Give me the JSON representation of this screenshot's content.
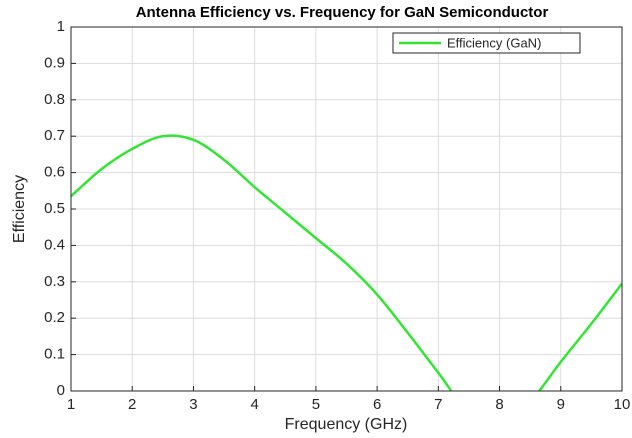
{
  "chart_data": {
    "type": "line",
    "title": "Antenna Efficiency vs. Frequency for GaN Semiconductor",
    "x_label": "Frequency (GHz)",
    "y_label": "Efficiency",
    "x": [
      1,
      1.5,
      2,
      2.5,
      3,
      3.5,
      4,
      4.5,
      5,
      5.5,
      6,
      6.5,
      7,
      7.5,
      8,
      8.5,
      9,
      9.5,
      10
    ],
    "series": [
      {
        "name": "Efficiency (GaN)",
        "color": "#33e533",
        "values": [
          0.535,
          0.61,
          0.665,
          0.7,
          0.69,
          0.635,
          0.56,
          0.49,
          0.42,
          0.35,
          0.265,
          0.16,
          0.05,
          -0.06,
          -0.1,
          -0.03,
          0.08,
          0.185,
          0.295
        ]
      }
    ],
    "xlim": [
      1,
      10
    ],
    "xticks": [
      1,
      2,
      3,
      4,
      5,
      6,
      7,
      8,
      9,
      10
    ],
    "ylim": [
      0,
      1
    ],
    "yticks": [
      0,
      0.1,
      0.2,
      0.3,
      0.4,
      0.5,
      0.6,
      0.7,
      0.8,
      0.9,
      1
    ],
    "grid": true,
    "legend": "northeast"
  }
}
